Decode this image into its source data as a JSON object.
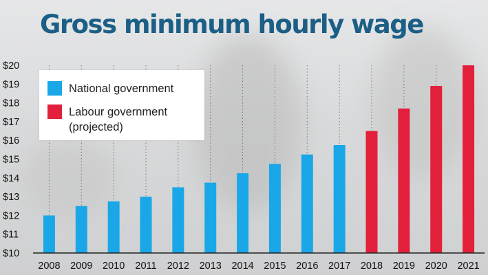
{
  "chart_data": {
    "type": "bar",
    "title": "Gross minimum hourly wage",
    "xlabel": "",
    "ylabel": "",
    "categories": [
      "2008",
      "2009",
      "2010",
      "2011",
      "2012",
      "2013",
      "2014",
      "2015",
      "2016",
      "2017",
      "2018",
      "2019",
      "2020",
      "2021"
    ],
    "values": [
      12.0,
      12.5,
      12.75,
      13.0,
      13.5,
      13.75,
      14.25,
      14.75,
      15.25,
      15.75,
      16.5,
      17.7,
      18.9,
      20.0
    ],
    "series_by_category": [
      "national",
      "national",
      "national",
      "national",
      "national",
      "national",
      "national",
      "national",
      "national",
      "national",
      "labour",
      "labour",
      "labour",
      "labour"
    ],
    "series": [
      {
        "key": "national",
        "name": "National government",
        "color": "#1aa7e8"
      },
      {
        "key": "labour",
        "name": "Labour government\n(projected)",
        "color": "#e3203b"
      }
    ],
    "ylim": [
      10,
      20
    ],
    "yticks": [
      10,
      11,
      12,
      13,
      14,
      15,
      16,
      17,
      18,
      19,
      20
    ],
    "ytick_labels": [
      "$10",
      "$11",
      "$12",
      "$13",
      "$14",
      "$15",
      "$16",
      "$17",
      "$18",
      "$19",
      "$20"
    ],
    "grid": true,
    "grid_style": "dotted",
    "legend_position": "top-left"
  },
  "colors": {
    "title": "#1c5f86",
    "national": "#1aa7e8",
    "labour": "#e3203b",
    "grid": "#555555"
  }
}
